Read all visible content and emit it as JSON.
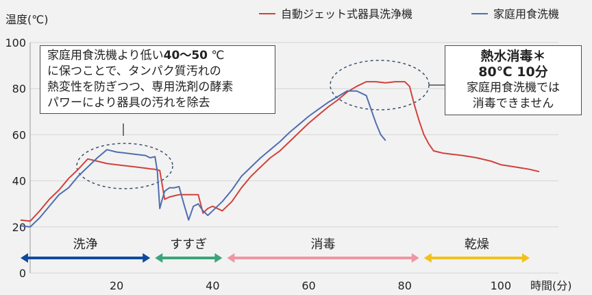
{
  "chart_data": {
    "type": "line",
    "ylabel": "温度(℃)",
    "xlabel": "時間(分)",
    "xlim": [
      0,
      110
    ],
    "ylim": [
      0,
      100
    ],
    "xticks": [
      "20",
      "40",
      "60",
      "80",
      "100"
    ],
    "xtick_values": [
      20,
      40,
      60,
      80,
      100
    ],
    "yticks": [
      "0",
      "20",
      "40",
      "60",
      "80",
      "100"
    ],
    "ytick_values": [
      0,
      20,
      40,
      60,
      80,
      100
    ],
    "series": [
      {
        "name": "自動ジェット式器具洗浄機",
        "color": "#d0413a",
        "x": [
          0,
          2,
          4,
          6,
          8,
          10,
          12,
          14,
          16,
          18,
          20,
          22,
          24,
          26,
          27,
          28,
          29,
          30,
          31,
          32,
          33,
          34,
          35,
          36,
          37,
          38,
          39,
          40,
          42,
          44,
          46,
          48,
          50,
          52,
          54,
          56,
          58,
          60,
          62,
          64,
          66,
          68,
          70,
          72,
          74,
          76,
          78,
          80,
          81,
          82,
          83,
          84,
          85,
          86,
          88,
          90,
          92,
          95,
          98,
          100,
          103,
          106,
          108
        ],
        "y": [
          23,
          22.5,
          27,
          32,
          36,
          41,
          45,
          49.5,
          48.5,
          47.5,
          47,
          46.5,
          46,
          45.5,
          45.2,
          45,
          44.5,
          32,
          33,
          33.5,
          34,
          34,
          34,
          34,
          34,
          26,
          28,
          29,
          27,
          31,
          37,
          42,
          46,
          50,
          53,
          57,
          61,
          65,
          68.5,
          72,
          75,
          78.5,
          81,
          83,
          83,
          82.5,
          83,
          83,
          81,
          73,
          66,
          60,
          56,
          53,
          52,
          51.5,
          51,
          50,
          48.5,
          47,
          46,
          45,
          44
        ]
      },
      {
        "name": "家庭用食洗機",
        "color": "#4f6db0",
        "x": [
          0,
          2,
          4,
          6,
          8,
          10,
          12,
          14,
          16,
          18,
          20,
          22,
          24,
          26,
          27,
          28,
          28.5,
          29,
          29.5,
          30,
          31,
          32,
          33,
          34,
          35,
          36,
          37,
          38,
          39,
          40,
          42,
          44,
          46,
          48,
          50,
          52,
          54,
          56,
          58,
          60,
          62,
          64,
          66,
          68,
          70,
          72,
          73,
          74,
          75,
          76
        ],
        "y": [
          20.5,
          20,
          24,
          29,
          34,
          37,
          42,
          46,
          50,
          53.5,
          52.5,
          52,
          51.5,
          51,
          50,
          50.5,
          44,
          28,
          32,
          35.5,
          37,
          37,
          37.5,
          30,
          23,
          29,
          30,
          27,
          25,
          27,
          31,
          36,
          42,
          46,
          50,
          53.5,
          57,
          61,
          64.5,
          68,
          71,
          74,
          76.5,
          79,
          79,
          77,
          71,
          65,
          60,
          57.5
        ]
      }
    ],
    "phases": [
      {
        "label": "洗浄",
        "start": 0,
        "end": 27,
        "color": "#0d4a9e"
      },
      {
        "label": "すすぎ",
        "start": 28,
        "end": 42,
        "color": "#3aa57a"
      },
      {
        "label": "消毒",
        "start": 43,
        "end": 83,
        "color": "#ee96a4"
      },
      {
        "label": "乾燥",
        "start": 84,
        "end": 106,
        "color": "#f2c01c"
      }
    ],
    "annotations": {
      "wash_note": {
        "line1_pre": "家庭用食洗機より低い",
        "line1_bold": "40～50",
        "line1_post": " ℃",
        "line2": "に保つことで、タンパク質汚れの",
        "line3": "熱変性を防ぎつつ、専用洗剤の酵素",
        "line4": "パワーにより器具の汚れを除去"
      },
      "disinfect_note": {
        "header1": "熱水消毒＊",
        "header2": "80℃ 10分",
        "line1": "家庭用食洗機では",
        "line2": "消毒できません"
      }
    }
  }
}
